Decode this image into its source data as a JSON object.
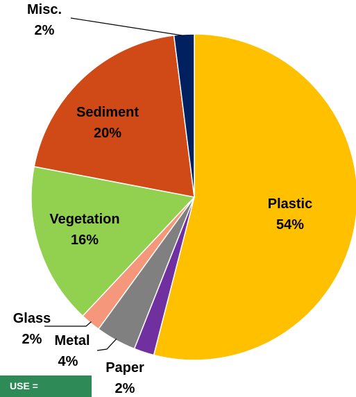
{
  "chart_data": {
    "type": "pie",
    "slices": [
      {
        "label": "Plastic",
        "percent_label": "54%",
        "value": 54,
        "color": "#ffc000"
      },
      {
        "label": "Paper",
        "percent_label": "2%",
        "value": 2,
        "color": "#7030a0"
      },
      {
        "label": "Metal",
        "percent_label": "4%",
        "value": 4,
        "color": "#808080"
      },
      {
        "label": "Glass",
        "percent_label": "2%",
        "value": 2,
        "color": "#f4977a"
      },
      {
        "label": "Vegetation",
        "percent_label": "16%",
        "value": 16,
        "color": "#92d050"
      },
      {
        "label": "Sediment",
        "percent_label": "20%",
        "value": 20,
        "color": "#d04a17"
      },
      {
        "label": "Misc.",
        "percent_label": "2%",
        "value": 2,
        "color": "#002060"
      }
    ],
    "start_angle_deg": 0,
    "direction": "clockwise"
  },
  "footer": {
    "use_text": "USE ="
  }
}
